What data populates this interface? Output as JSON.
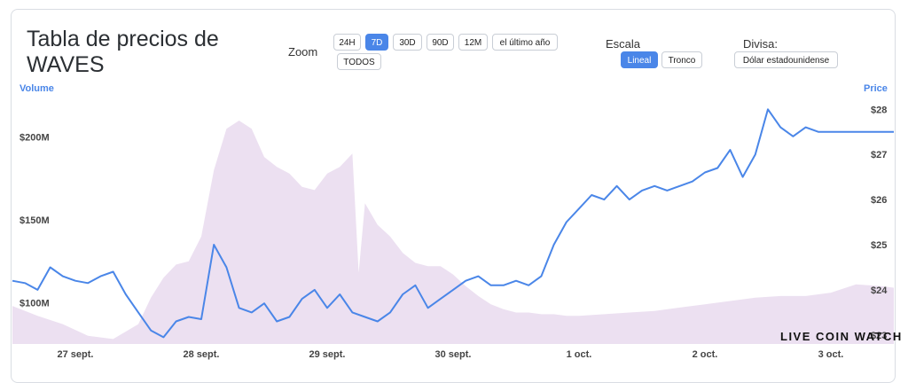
{
  "header": {
    "title_line1": "Tabla de precios de",
    "title_line2": "WAVES"
  },
  "zoom": {
    "label": "Zoom",
    "options": [
      "24H",
      "7D",
      "30D",
      "90D",
      "12M",
      "el último año",
      "TODOS"
    ],
    "active": "7D"
  },
  "scale": {
    "label": "Escala",
    "options": [
      "Lineal",
      "Tronco"
    ],
    "active": "Lineal"
  },
  "currency": {
    "label": "Divisa:",
    "value": "Dólar estadounidense"
  },
  "watermark": "LIVE COIN WATCH",
  "colors": {
    "price_line": "#4a86e8",
    "volume_area": "#ece0f1",
    "accent": "#4a86e8"
  },
  "chart_data": {
    "type": "line",
    "x_labels": [
      "27 sept.",
      "28 sept.",
      "29 sept.",
      "30 sept.",
      "1 oct.",
      "2 oct.",
      "3 oct."
    ],
    "left_axis": {
      "title": "Volume",
      "ticks": [
        "$100M",
        "$150M",
        "$200M"
      ],
      "tick_values": [
        100,
        150,
        200
      ],
      "unit": "$M"
    },
    "right_axis": {
      "title": "Price",
      "ticks": [
        "$23",
        "$24",
        "$25",
        "$26",
        "$27",
        "$28"
      ],
      "tick_values": [
        23,
        24,
        25,
        26,
        27,
        28
      ]
    },
    "series": [
      {
        "name": "Price",
        "axis": "right",
        "x": [
          26.5,
          26.6,
          26.7,
          26.8,
          26.9,
          27.0,
          27.1,
          27.2,
          27.3,
          27.4,
          27.5,
          27.6,
          27.7,
          27.8,
          27.9,
          28.0,
          28.1,
          28.2,
          28.3,
          28.4,
          28.5,
          28.6,
          28.7,
          28.8,
          28.9,
          29.0,
          29.1,
          29.2,
          29.3,
          29.4,
          29.5,
          29.6,
          29.7,
          29.8,
          29.9,
          30.0,
          30.1,
          30.2,
          30.3,
          30.4,
          30.5,
          30.6,
          30.7,
          30.8,
          30.9,
          31.0,
          31.1,
          31.2,
          31.3,
          31.4,
          31.5,
          31.6,
          31.7,
          31.8,
          31.9,
          32.0,
          32.1,
          32.2,
          32.3,
          32.4,
          32.5,
          32.6,
          32.7,
          32.8,
          32.9,
          33.0,
          33.1,
          33.2,
          33.3,
          33.4,
          33.5
        ],
        "values": [
          24.2,
          24.15,
          24.0,
          24.5,
          24.3,
          24.2,
          24.15,
          24.3,
          24.4,
          23.9,
          23.5,
          23.1,
          22.95,
          23.3,
          23.4,
          23.35,
          25.0,
          24.5,
          23.6,
          23.5,
          23.7,
          23.3,
          23.4,
          23.8,
          24.0,
          23.6,
          23.9,
          23.5,
          23.4,
          23.3,
          23.5,
          23.9,
          24.1,
          23.6,
          23.8,
          24.0,
          24.2,
          24.3,
          24.1,
          24.1,
          24.2,
          24.1,
          24.3,
          25.0,
          25.5,
          25.8,
          26.1,
          26.0,
          26.3,
          26.0,
          26.2,
          26.3,
          26.2,
          26.3,
          26.4,
          26.6,
          26.7,
          27.1,
          26.5,
          27.0,
          28.0,
          27.6,
          27.4,
          27.6,
          27.5,
          27.5,
          27.5,
          27.5,
          27.5,
          27.5,
          27.5
        ],
        "y_range": [
          22.8,
          28.3
        ]
      },
      {
        "name": "Volume",
        "axis": "left",
        "x": [
          26.5,
          26.7,
          26.9,
          27.1,
          27.3,
          27.5,
          27.6,
          27.7,
          27.8,
          27.9,
          28.0,
          28.1,
          28.2,
          28.3,
          28.4,
          28.5,
          28.6,
          28.7,
          28.8,
          28.9,
          29.0,
          29.1,
          29.2,
          29.25,
          29.3,
          29.4,
          29.5,
          29.6,
          29.7,
          29.8,
          29.9,
          30.0,
          30.1,
          30.2,
          30.3,
          30.4,
          30.5,
          30.6,
          30.7,
          30.8,
          30.9,
          31.0,
          31.2,
          31.4,
          31.6,
          31.8,
          32.0,
          32.2,
          32.4,
          32.6,
          32.8,
          33.0,
          33.2,
          33.4,
          33.5
        ],
        "values": [
          98,
          92,
          87,
          80,
          78,
          87,
          103,
          115,
          123,
          125,
          140,
          180,
          205,
          210,
          205,
          188,
          182,
          178,
          170,
          168,
          178,
          182,
          190,
          118,
          160,
          147,
          140,
          130,
          124,
          122,
          122,
          117,
          110,
          104,
          99,
          96,
          94,
          94,
          93,
          93,
          92,
          92,
          93,
          94,
          95,
          97,
          99,
          101,
          103,
          104,
          104,
          106,
          111,
          110,
          109
        ],
        "y_range": [
          75,
          225
        ]
      }
    ],
    "legend": "none",
    "grid": false
  }
}
